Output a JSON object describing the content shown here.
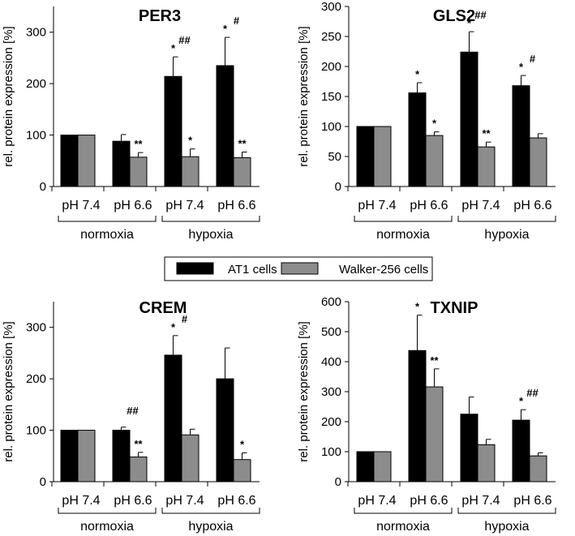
{
  "colors": {
    "at1": "#000000",
    "walker": "#8c8c8c"
  },
  "groups": [
    "normoxia",
    "hypoxia"
  ],
  "legend": {
    "labels": [
      "AT1 cells",
      "Walker-256 cells"
    ]
  },
  "chart_data": [
    {
      "type": "bar",
      "title": "PER3",
      "ylabel": "rel. protein expression  [%]",
      "ylim": [
        0,
        350
      ],
      "yticks": [
        0,
        100,
        200,
        300
      ],
      "categories": [
        "pH 7.4",
        "pH 6.6",
        "pH 7.4",
        "pH 6.6"
      ],
      "series": [
        {
          "name": "AT1 cells",
          "values": [
            100,
            88,
            214,
            235
          ],
          "errors": [
            0,
            13,
            38,
            55
          ],
          "annotations": [
            "",
            "",
            "*",
            "*"
          ]
        },
        {
          "name": "Walker-256 cells",
          "values": [
            100,
            57,
            58,
            56
          ],
          "errors": [
            0,
            9,
            15,
            11
          ],
          "annotations": [
            "",
            "**",
            "*",
            "**"
          ]
        }
      ],
      "group_annotations": [
        "",
        "",
        "##",
        "#"
      ]
    },
    {
      "type": "bar",
      "title": "GLS2",
      "ylabel": "rel. protein expression  [%]",
      "ylim": [
        0,
        300
      ],
      "yticks": [
        0,
        50,
        100,
        150,
        200,
        250,
        300
      ],
      "categories": [
        "pH 7.4",
        "pH 6.6",
        "pH 7.4",
        "pH 6.6"
      ],
      "series": [
        {
          "name": "AT1 cells",
          "values": [
            100,
            156,
            224,
            168
          ],
          "errors": [
            0,
            17,
            34,
            17
          ],
          "annotations": [
            "",
            "*",
            "*",
            "*"
          ]
        },
        {
          "name": "Walker-256 cells",
          "values": [
            100,
            85,
            66,
            81
          ],
          "errors": [
            0,
            6,
            8,
            7
          ],
          "annotations": [
            "",
            "*",
            "**",
            ""
          ]
        }
      ],
      "group_annotations": [
        "",
        "",
        "##",
        "#"
      ]
    },
    {
      "type": "bar",
      "title": "CREM",
      "ylabel": "rel. protein expression  [%]",
      "ylim": [
        0,
        350
      ],
      "yticks": [
        0,
        100,
        200,
        300
      ],
      "categories": [
        "pH 7.4",
        "pH 6.6",
        "pH 7.4",
        "pH 6.6"
      ],
      "series": [
        {
          "name": "AT1 cells",
          "values": [
            100,
            100,
            246,
            200
          ],
          "errors": [
            0,
            6,
            38,
            60
          ],
          "annotations": [
            "",
            "",
            "*",
            ""
          ]
        },
        {
          "name": "Walker-256 cells",
          "values": [
            100,
            48,
            91,
            43
          ],
          "errors": [
            0,
            9,
            11,
            13
          ],
          "annotations": [
            "",
            "**",
            "",
            "*"
          ]
        }
      ],
      "group_annotations": [
        "",
        "##",
        "#",
        ""
      ]
    },
    {
      "type": "bar",
      "title": "TXNIP",
      "ylabel": "rel. protein expression  [%]",
      "ylim": [
        0,
        600
      ],
      "yticks": [
        0,
        100,
        200,
        300,
        400,
        500,
        600
      ],
      "categories": [
        "pH 7.4",
        "pH 6.6",
        "pH 7.4",
        "pH 6.6"
      ],
      "series": [
        {
          "name": "AT1 cells",
          "values": [
            100,
            437,
            225,
            205
          ],
          "errors": [
            0,
            118,
            57,
            35
          ],
          "annotations": [
            "",
            "*",
            "",
            "*"
          ]
        },
        {
          "name": "Walker-256 cells",
          "values": [
            100,
            316,
            123,
            86
          ],
          "errors": [
            0,
            60,
            18,
            10
          ],
          "annotations": [
            "",
            "**",
            "",
            ""
          ]
        }
      ],
      "group_annotations": [
        "",
        "",
        "",
        "##"
      ]
    }
  ]
}
